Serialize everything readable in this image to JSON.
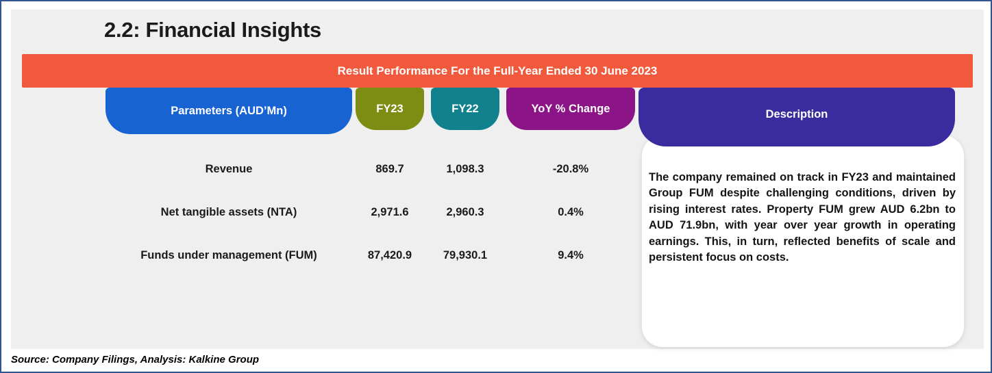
{
  "title": "2.2: Financial Insights",
  "banner": {
    "text": "Result Performance For the Full-Year Ended 30 June 2023"
  },
  "table": {
    "columns": [
      {
        "label": "Parameters  (AUD’Mn)",
        "bg": "#1763D2"
      },
      {
        "label": "FY23",
        "bg": "#7D8C12"
      },
      {
        "label": "FY22",
        "bg": "#12818E"
      },
      {
        "label": "YoY % Change",
        "bg": "#8B1487"
      }
    ],
    "rows": [
      {
        "parameter": "Revenue",
        "fy23": "869.7",
        "fy22": "1,098.3",
        "yoy": "-20.8%"
      },
      {
        "parameter": "Net tangible assets (NTA)",
        "fy23": "2,971.6",
        "fy22": "2,960.3",
        "yoy": "0.4%"
      },
      {
        "parameter": "Funds under management (FUM)",
        "fy23": "87,420.9",
        "fy22": "79,930.1",
        "yoy": "9.4%"
      }
    ]
  },
  "description": {
    "header": "Description",
    "header_bg": "#3A2B9E",
    "body": "The company remained on track in FY23 and maintained Group FUM despite challenging conditions, driven by rising interest rates. Property FUM grew AUD 6.2bn to AUD 71.9bn, with year over year growth in operating earnings. This, in turn, reflected benefits of scale and persistent focus on costs."
  },
  "footer": {
    "source": "Source: Company Filings, Analysis: Kalkine Group"
  },
  "colors": {
    "frame_border": "#2F5597",
    "panel_bg": "#EFEFEF",
    "banner_bg": "#F0593C",
    "parameters_bg": "#1763D2",
    "fy23_bg": "#7D8C12",
    "fy22_bg": "#12818E",
    "yoy_bg": "#8B1487",
    "description_bg": "#3A2B9E"
  }
}
